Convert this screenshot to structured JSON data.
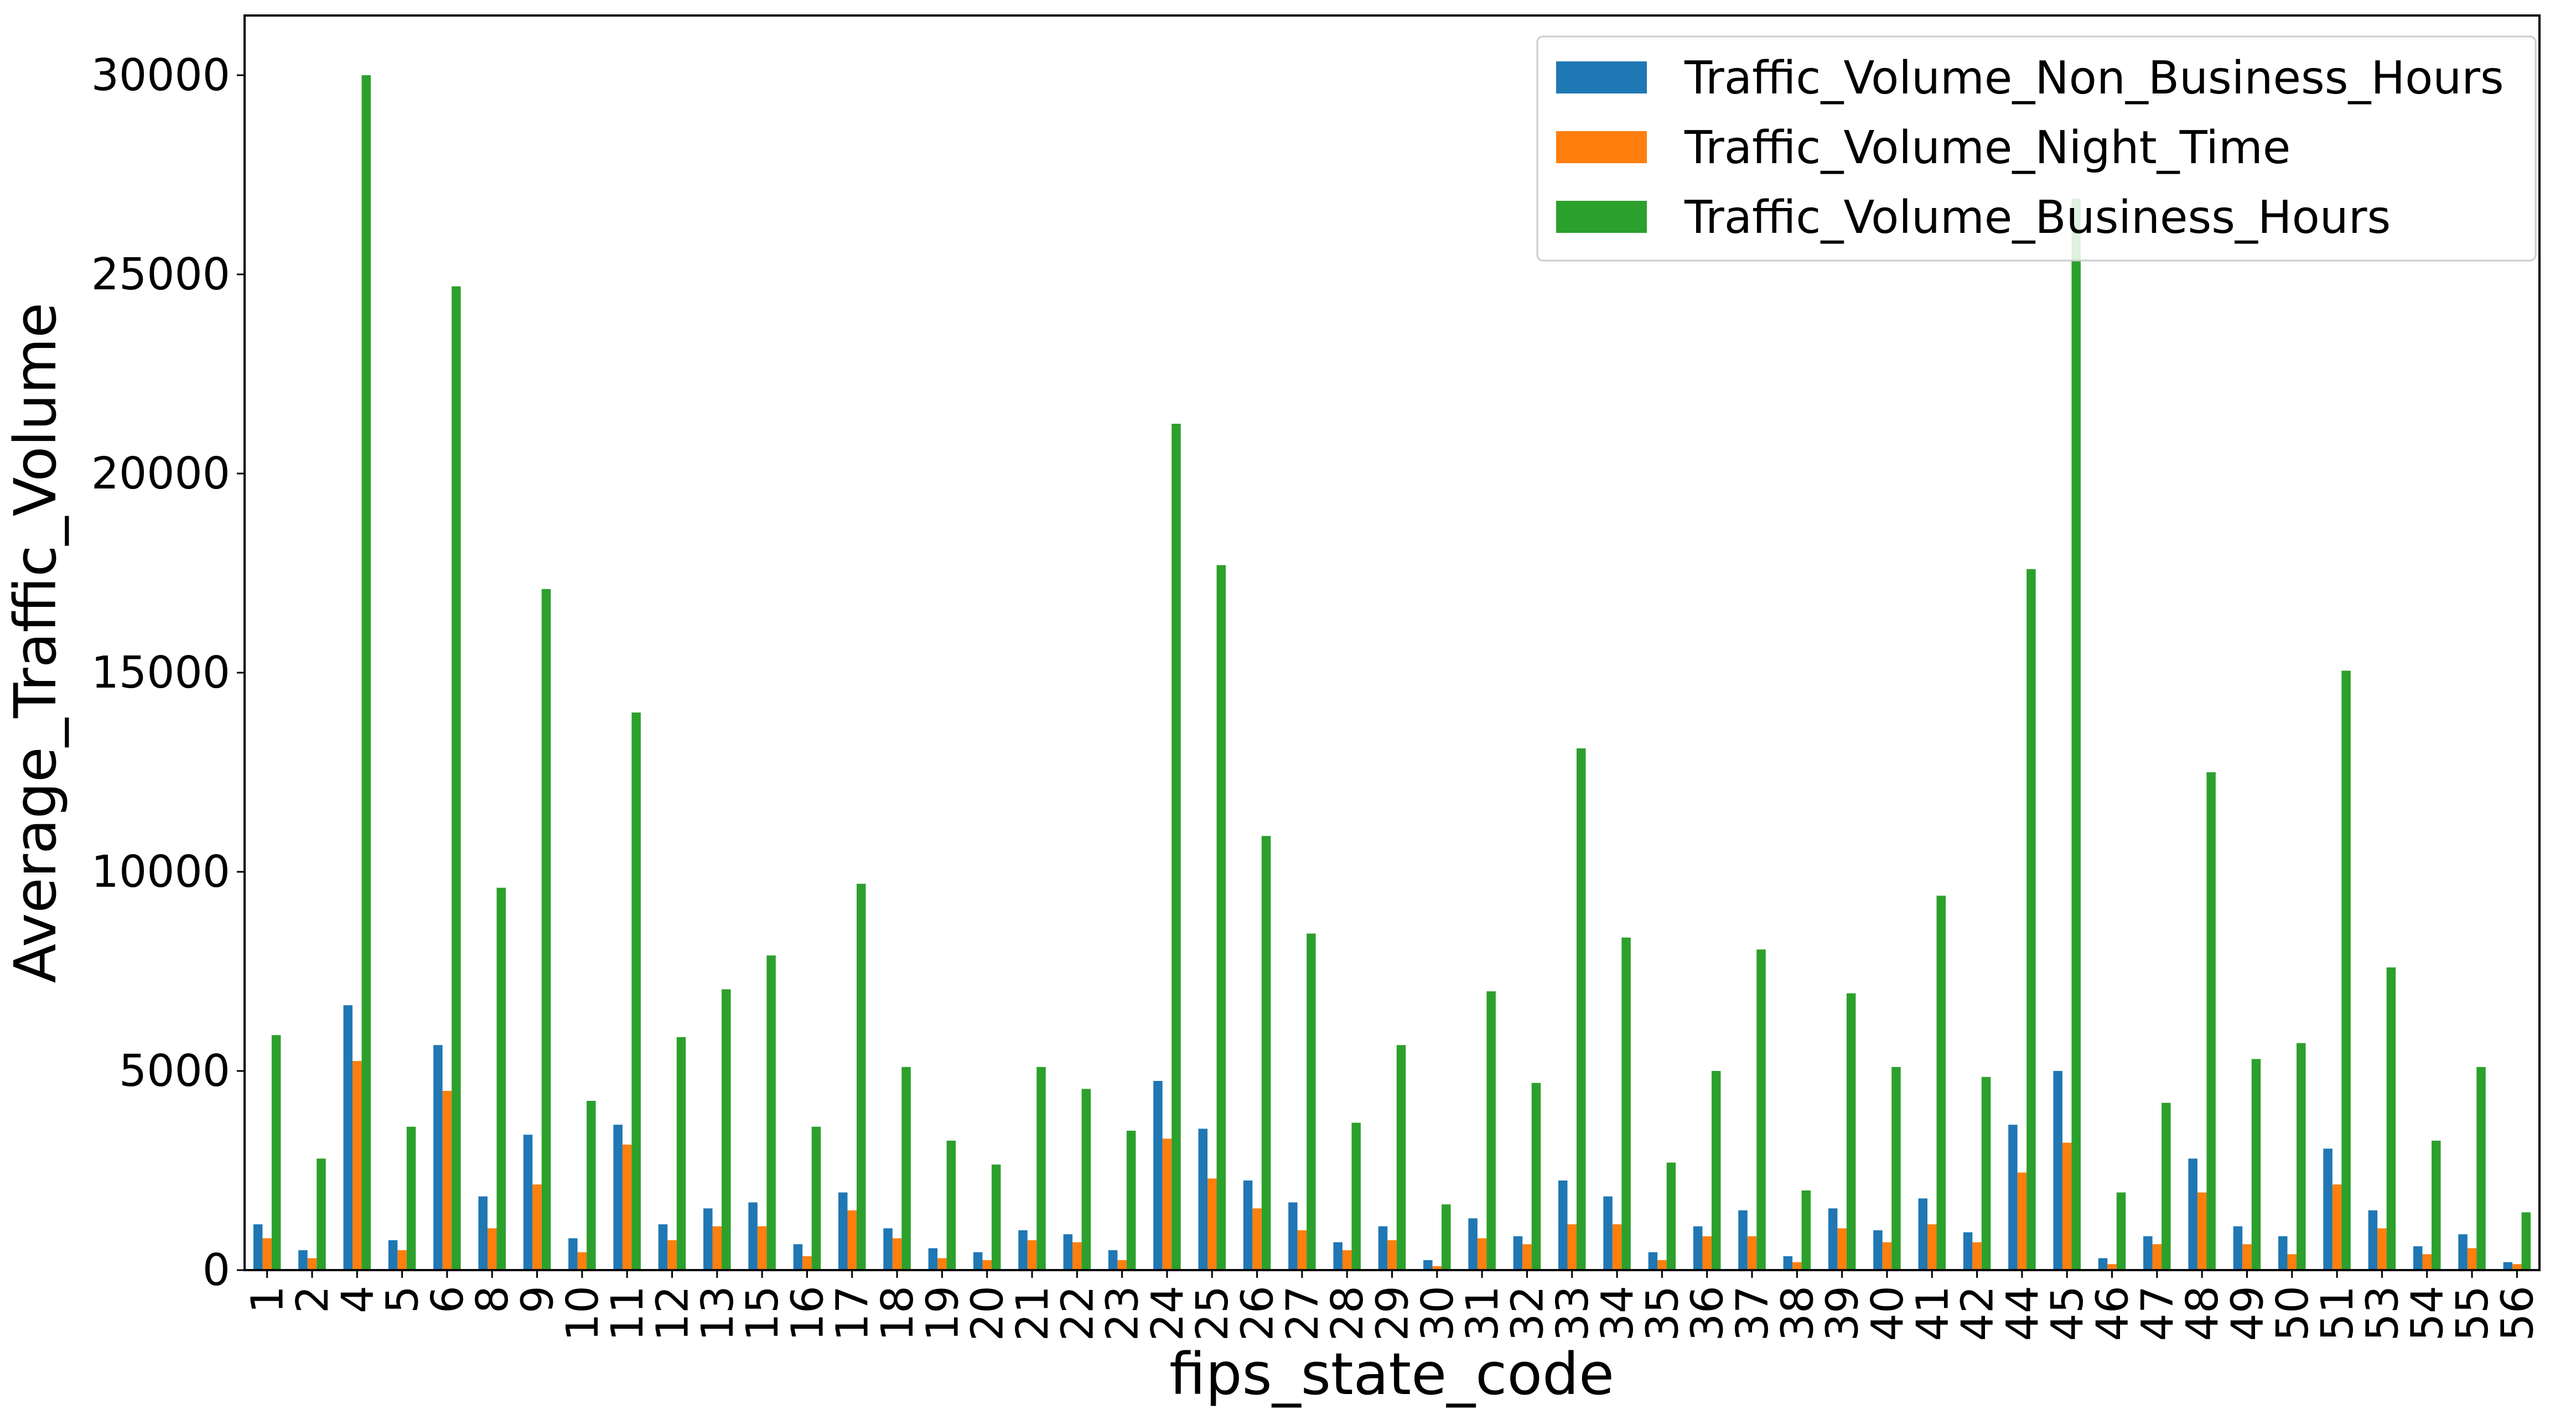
{
  "chart_data": {
    "type": "bar",
    "xlabel": "fips_state_code",
    "ylabel": "Average_Traffic_Volume",
    "ylim": [
      0,
      31500
    ],
    "yticks": [
      0,
      5000,
      10000,
      15000,
      20000,
      25000,
      30000
    ],
    "legend_position": "top-right",
    "grid": false,
    "categories": [
      "1",
      "2",
      "4",
      "5",
      "6",
      "8",
      "9",
      "10",
      "11",
      "12",
      "13",
      "15",
      "16",
      "17",
      "18",
      "19",
      "20",
      "21",
      "22",
      "23",
      "24",
      "25",
      "26",
      "27",
      "28",
      "29",
      "30",
      "31",
      "32",
      "33",
      "34",
      "35",
      "36",
      "37",
      "38",
      "39",
      "40",
      "41",
      "42",
      "44",
      "45",
      "46",
      "47",
      "48",
      "49",
      "50",
      "51",
      "53",
      "54",
      "55",
      "56"
    ],
    "series": [
      {
        "name": "Traffic_Volume_Non_Business_Hours",
        "color": "#1f77b4",
        "values": [
          1150,
          500,
          6650,
          750,
          5650,
          1850,
          3400,
          800,
          3650,
          1150,
          1550,
          1700,
          650,
          1950,
          1050,
          550,
          450,
          1000,
          900,
          500,
          4750,
          3550,
          2250,
          1700,
          700,
          1100,
          250,
          1300,
          850,
          2250,
          1850,
          450,
          1100,
          1500,
          350,
          1550,
          1000,
          1800,
          950,
          3650,
          5000,
          300,
          850,
          2800,
          1100,
          850,
          3050,
          1500,
          600,
          900,
          200
        ]
      },
      {
        "name": "Traffic_Volume_Night_Time",
        "color": "#ff7f0e",
        "values": [
          800,
          300,
          5250,
          500,
          4500,
          1050,
          2150,
          450,
          3150,
          750,
          1100,
          1100,
          350,
          1500,
          800,
          300,
          250,
          750,
          700,
          250,
          3300,
          2300,
          1550,
          1000,
          500,
          750,
          100,
          800,
          650,
          1150,
          1150,
          250,
          850,
          850,
          200,
          1050,
          700,
          1150,
          700,
          2450,
          3200,
          150,
          650,
          1950,
          650,
          400,
          2150,
          1050,
          400,
          550,
          150
        ]
      },
      {
        "name": "Traffic_Volume_Business_Hours",
        "color": "#2ca02c",
        "values": [
          5900,
          2800,
          30000,
          3600,
          24700,
          9600,
          17100,
          4250,
          14000,
          5850,
          7050,
          7900,
          3600,
          9700,
          5100,
          3250,
          2650,
          5100,
          4550,
          3500,
          21250,
          17700,
          10900,
          8450,
          3700,
          5650,
          1650,
          7000,
          4700,
          13100,
          8350,
          2700,
          5000,
          8050,
          2000,
          6950,
          5100,
          9400,
          4850,
          17600,
          26900,
          1950,
          4200,
          12500,
          5300,
          5700,
          15050,
          7600,
          3250,
          5100,
          1450
        ]
      }
    ]
  }
}
